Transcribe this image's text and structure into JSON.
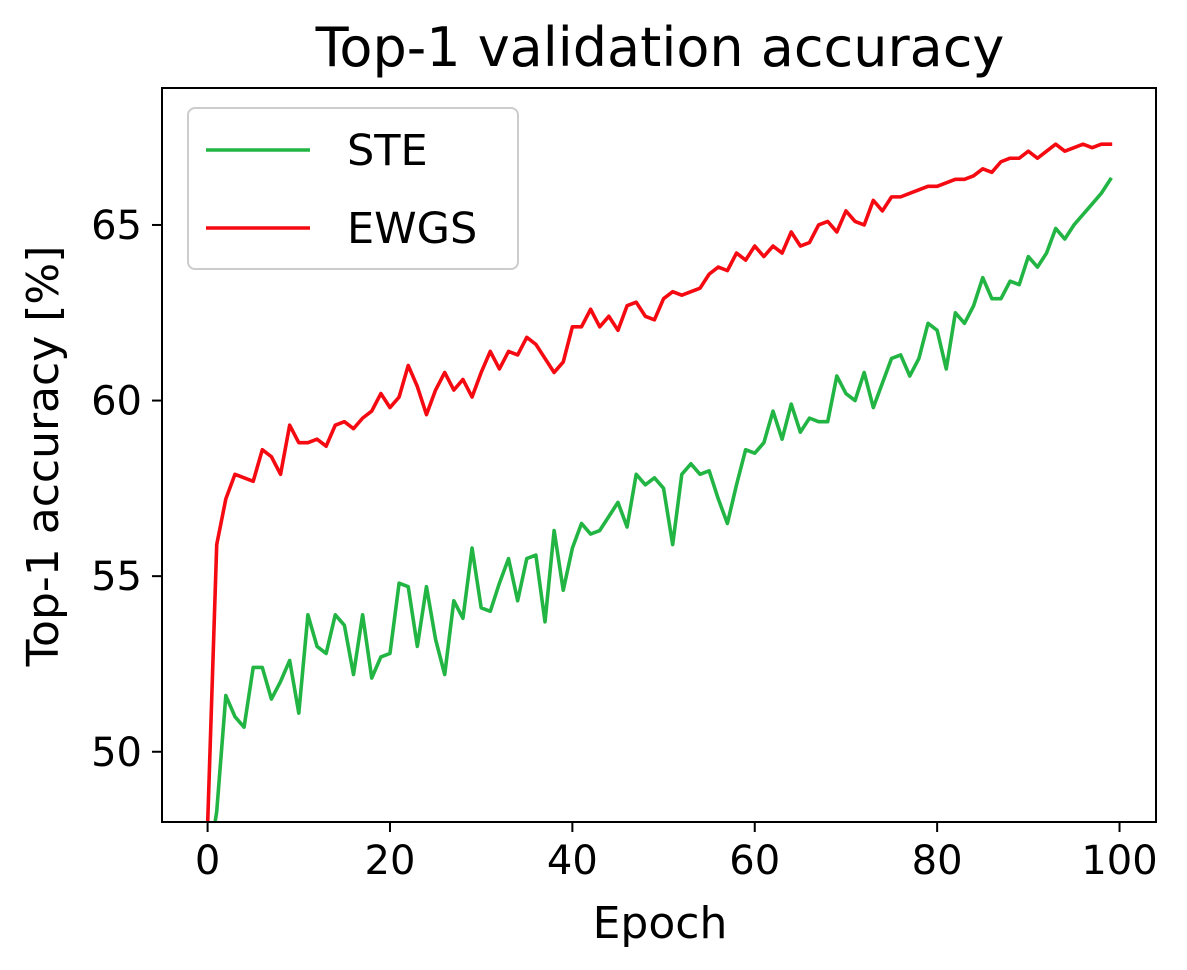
{
  "chart_data": {
    "type": "line",
    "title": "Top-1 validation accuracy",
    "xlabel": "Epoch",
    "ylabel": "Top-1 accuracy [%]",
    "xlim": [
      -5,
      104
    ],
    "ylim": [
      48.0,
      68.9
    ],
    "xticks": [
      0,
      20,
      40,
      60,
      80,
      100
    ],
    "yticks": [
      50,
      55,
      60,
      65
    ],
    "grid": false,
    "legend": "top-left",
    "series": [
      {
        "name": "STE",
        "color": "#22b544",
        "x": [
          0,
          1,
          2,
          3,
          4,
          5,
          6,
          7,
          8,
          9,
          10,
          11,
          12,
          13,
          14,
          15,
          16,
          17,
          18,
          19,
          20,
          21,
          22,
          23,
          24,
          25,
          26,
          27,
          28,
          29,
          30,
          31,
          32,
          33,
          34,
          35,
          36,
          37,
          38,
          39,
          40,
          41,
          42,
          43,
          44,
          45,
          46,
          47,
          48,
          49,
          50,
          51,
          52,
          53,
          54,
          55,
          56,
          57,
          58,
          59,
          60,
          61,
          62,
          63,
          64,
          65,
          66,
          67,
          68,
          69,
          70,
          71,
          72,
          73,
          74,
          75,
          76,
          77,
          78,
          79,
          80,
          81,
          82,
          83,
          84,
          85,
          86,
          87,
          88,
          89,
          90,
          91,
          92,
          93,
          94,
          95,
          96,
          97,
          98,
          99
        ],
        "values": [
          46.6,
          48.3,
          51.6,
          51.0,
          50.7,
          52.4,
          52.4,
          51.5,
          52.0,
          52.6,
          51.1,
          53.9,
          53.0,
          52.8,
          53.9,
          53.6,
          52.2,
          53.9,
          52.1,
          52.7,
          52.8,
          54.8,
          54.7,
          53.0,
          54.7,
          53.2,
          52.2,
          54.3,
          53.8,
          55.8,
          54.1,
          54.0,
          54.8,
          55.5,
          54.3,
          55.5,
          55.6,
          53.7,
          56.3,
          54.6,
          55.8,
          56.5,
          56.2,
          56.3,
          56.7,
          57.1,
          56.4,
          57.9,
          57.6,
          57.8,
          57.5,
          55.9,
          57.9,
          58.2,
          57.9,
          58.0,
          57.2,
          56.5,
          57.6,
          58.6,
          58.5,
          58.8,
          59.7,
          58.9,
          59.9,
          59.1,
          59.5,
          59.4,
          59.4,
          60.7,
          60.2,
          60.0,
          60.8,
          59.8,
          60.5,
          61.2,
          61.3,
          60.7,
          61.2,
          62.2,
          62.0,
          60.9,
          62.5,
          62.2,
          62.7,
          63.5,
          62.9,
          62.9,
          63.4,
          63.3,
          64.1,
          63.8,
          64.2,
          64.9,
          64.6,
          65.0,
          65.3,
          65.6,
          65.9,
          66.3
        ]
      },
      {
        "name": "EWGS",
        "color": "#f40a10",
        "x": [
          0,
          1,
          2,
          3,
          4,
          5,
          6,
          7,
          8,
          9,
          10,
          11,
          12,
          13,
          14,
          15,
          16,
          17,
          18,
          19,
          20,
          21,
          22,
          23,
          24,
          25,
          26,
          27,
          28,
          29,
          30,
          31,
          32,
          33,
          34,
          35,
          36,
          37,
          38,
          39,
          40,
          41,
          42,
          43,
          44,
          45,
          46,
          47,
          48,
          49,
          50,
          51,
          52,
          53,
          54,
          55,
          56,
          57,
          58,
          59,
          60,
          61,
          62,
          63,
          64,
          65,
          66,
          67,
          68,
          69,
          70,
          71,
          72,
          73,
          74,
          75,
          76,
          77,
          78,
          79,
          80,
          81,
          82,
          83,
          84,
          85,
          86,
          87,
          88,
          89,
          90,
          91,
          92,
          93,
          94,
          95,
          96,
          97,
          98,
          99
        ],
        "values": [
          47.9,
          55.9,
          57.2,
          57.9,
          57.8,
          57.7,
          58.6,
          58.4,
          57.9,
          59.3,
          58.8,
          58.8,
          58.9,
          58.7,
          59.3,
          59.4,
          59.2,
          59.5,
          59.7,
          60.2,
          59.8,
          60.1,
          61.0,
          60.4,
          59.6,
          60.3,
          60.8,
          60.3,
          60.6,
          60.1,
          60.8,
          61.4,
          60.9,
          61.4,
          61.3,
          61.8,
          61.6,
          61.2,
          60.8,
          61.1,
          62.1,
          62.1,
          62.6,
          62.1,
          62.4,
          62.0,
          62.7,
          62.8,
          62.4,
          62.3,
          62.9,
          63.1,
          63.0,
          63.1,
          63.2,
          63.6,
          63.8,
          63.7,
          64.2,
          64.0,
          64.4,
          64.1,
          64.4,
          64.2,
          64.8,
          64.4,
          64.5,
          65.0,
          65.1,
          64.8,
          65.4,
          65.1,
          65.0,
          65.7,
          65.4,
          65.8,
          65.8,
          65.9,
          66.0,
          66.1,
          66.1,
          66.2,
          66.3,
          66.3,
          66.4,
          66.6,
          66.5,
          66.8,
          66.9,
          66.9,
          67.1,
          66.9,
          67.1,
          67.3,
          67.1,
          67.2,
          67.3,
          67.2,
          67.3,
          67.3
        ]
      }
    ]
  }
}
